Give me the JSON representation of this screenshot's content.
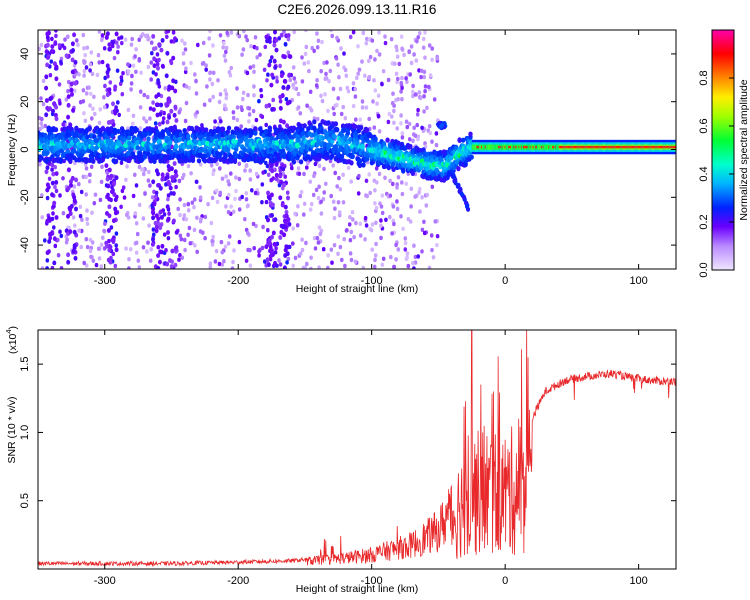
{
  "title": "C2E6.2026.099.13.11.R16",
  "chart_data": [
    {
      "type": "heatmap",
      "name": "spectrogram",
      "xlabel": "Height of straight line (km)",
      "ylabel": "Frequency (Hz)",
      "xlim": [
        -350,
        128
      ],
      "ylim": [
        -50,
        50
      ],
      "x_ticks": [
        -300,
        -200,
        -100,
        0,
        100
      ],
      "y_ticks": [
        -40,
        -20,
        0,
        20,
        40
      ],
      "colorbar": {
        "label": "Normalized spectral amplitude",
        "range": [
          0,
          1
        ],
        "ticks": [
          0.0,
          0.2,
          0.4,
          0.6,
          0.8
        ],
        "tick_labels": [
          "0.0",
          "0.2",
          "0.4",
          "0.6",
          "0.8"
        ],
        "colors": [
          "#f0e6ff",
          "#7d00ff",
          "#0022ff",
          "#00c8ff",
          "#00ff66",
          "#a0ff00",
          "#ffee00",
          "#ff8800",
          "#ff0000",
          "#ff00aa"
        ]
      },
      "ridge": [
        {
          "x": -350,
          "f": 2
        },
        {
          "x": -300,
          "f": 2
        },
        {
          "x": -250,
          "f": 2
        },
        {
          "x": -200,
          "f": 2
        },
        {
          "x": -160,
          "f": 2
        },
        {
          "x": -140,
          "f": 4
        },
        {
          "x": -120,
          "f": 3
        },
        {
          "x": -100,
          "f": 0
        },
        {
          "x": -80,
          "f": -3
        },
        {
          "x": -60,
          "f": -6
        },
        {
          "x": -45,
          "f": -7
        },
        {
          "x": -35,
          "f": -2
        },
        {
          "x": -25,
          "f": 1
        },
        {
          "x": 0,
          "f": 1
        },
        {
          "x": 128,
          "f": 1
        }
      ],
      "spur": {
        "x_start": -40,
        "x_end": -27,
        "f_start": -10,
        "f_end": -25
      },
      "spot": {
        "x": -48,
        "f": 10
      }
    },
    {
      "type": "line",
      "name": "snr",
      "xlabel": "Height of straight line (km)",
      "ylabel": "SNR (10 * v/v)",
      "y_scale_label": "(x10",
      "y_scale_exp": "4",
      "xlim": [
        -350,
        128
      ],
      "ylim": [
        0,
        1.75
      ],
      "x_ticks": [
        -300,
        -200,
        -100,
        0,
        100
      ],
      "y_ticks": [
        0.5,
        1.0,
        1.5
      ],
      "y_tick_labels": [
        "0.5",
        "1.0",
        "1.5"
      ],
      "color": "#e8282a",
      "envelope": [
        {
          "x": -350,
          "y": 0.04
        },
        {
          "x": -250,
          "y": 0.04
        },
        {
          "x": -200,
          "y": 0.05
        },
        {
          "x": -160,
          "y": 0.06
        },
        {
          "x": -120,
          "y": 0.1
        },
        {
          "x": -100,
          "y": 0.13
        },
        {
          "x": -70,
          "y": 0.22
        },
        {
          "x": -50,
          "y": 0.35
        },
        {
          "x": -40,
          "y": 0.55
        },
        {
          "x": -30,
          "y": 0.8
        },
        {
          "x": -20,
          "y": 0.85
        },
        {
          "x": -10,
          "y": 0.88
        },
        {
          "x": 0,
          "y": 0.85
        },
        {
          "x": 10,
          "y": 0.9
        },
        {
          "x": 20,
          "y": 1.1
        },
        {
          "x": 30,
          "y": 1.3
        },
        {
          "x": 45,
          "y": 1.38
        },
        {
          "x": 60,
          "y": 1.41
        },
        {
          "x": 80,
          "y": 1.43
        },
        {
          "x": 95,
          "y": 1.4
        },
        {
          "x": 110,
          "y": 1.38
        },
        {
          "x": 128,
          "y": 1.37
        }
      ],
      "peak": {
        "x": -25,
        "y": 1.75
      }
    }
  ]
}
